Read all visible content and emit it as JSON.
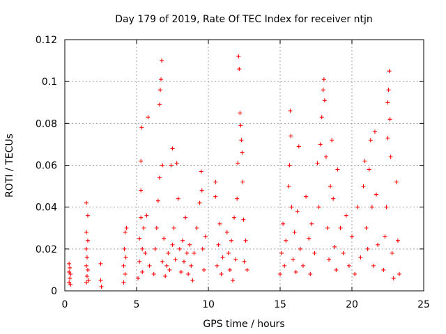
{
  "chart_data": {
    "type": "scatter",
    "title": "Day 179 of 2019, Rate Of TEC Index for receiver ntjn",
    "xlabel": "GPS time / hours",
    "ylabel": "ROTI / TECUs",
    "xlim": [
      0,
      25
    ],
    "ylim": [
      0,
      0.12
    ],
    "grid": true,
    "marker": "+",
    "color": "#ff0000",
    "x_ticks": [
      {
        "value": 0,
        "label": "0"
      },
      {
        "value": 5,
        "label": "5"
      },
      {
        "value": 10,
        "label": "10"
      },
      {
        "value": 15,
        "label": "15"
      },
      {
        "value": 20,
        "label": "20"
      },
      {
        "value": 25,
        "label": "25"
      }
    ],
    "y_ticks": [
      {
        "value": 0,
        "label": "0"
      },
      {
        "value": 0.02,
        "label": "0.02"
      },
      {
        "value": 0.04,
        "label": "0.04"
      },
      {
        "value": 0.06,
        "label": "0.06"
      },
      {
        "value": 0.08,
        "label": "0.08"
      },
      {
        "value": 0.1,
        "label": "0.1"
      },
      {
        "value": 0.12,
        "label": "0.12"
      }
    ],
    "series": [
      {
        "name": "ROTI",
        "points": [
          [
            0.3,
            0.004
          ],
          [
            0.3,
            0.009
          ],
          [
            0.3,
            0.013
          ],
          [
            0.35,
            0.006
          ],
          [
            0.35,
            0.011
          ],
          [
            0.4,
            0.003
          ],
          [
            0.4,
            0.008
          ],
          [
            1.5,
            0.004
          ],
          [
            1.5,
            0.012
          ],
          [
            1.5,
            0.02
          ],
          [
            1.5,
            0.028
          ],
          [
            1.5,
            0.042
          ],
          [
            1.55,
            0.007
          ],
          [
            1.55,
            0.016
          ],
          [
            1.6,
            0.01
          ],
          [
            1.6,
            0.024
          ],
          [
            1.6,
            0.036
          ],
          [
            1.65,
            0.005
          ],
          [
            2.5,
            0.005
          ],
          [
            2.5,
            0.013
          ],
          [
            2.55,
            0.002
          ],
          [
            4.1,
            0.004
          ],
          [
            4.1,
            0.012
          ],
          [
            4.15,
            0.02
          ],
          [
            4.2,
            0.008
          ],
          [
            4.2,
            0.028
          ],
          [
            4.25,
            0.016
          ],
          [
            4.3,
            0.03
          ],
          [
            5.1,
            0.006
          ],
          [
            5.2,
            0.014
          ],
          [
            5.2,
            0.025
          ],
          [
            5.3,
            0.035
          ],
          [
            5.3,
            0.048
          ],
          [
            5.3,
            0.062
          ],
          [
            5.35,
            0.078
          ],
          [
            5.4,
            0.02
          ],
          [
            5.4,
            0.009
          ],
          [
            5.5,
            0.03
          ],
          [
            5.6,
            0.018
          ],
          [
            5.7,
            0.036
          ],
          [
            5.8,
            0.083
          ],
          [
            5.9,
            0.012
          ],
          [
            6.2,
            0.008
          ],
          [
            6.3,
            0.02
          ],
          [
            6.4,
            0.03
          ],
          [
            6.5,
            0.043
          ],
          [
            6.6,
            0.054
          ],
          [
            6.6,
            0.089
          ],
          [
            6.65,
            0.096
          ],
          [
            6.7,
            0.101
          ],
          [
            6.75,
            0.11
          ],
          [
            6.8,
            0.06
          ],
          [
            6.8,
            0.014
          ],
          [
            6.9,
            0.025
          ],
          [
            7.0,
            0.007
          ],
          [
            7.1,
            0.012
          ],
          [
            7.2,
            0.018
          ],
          [
            7.3,
            0.01
          ],
          [
            7.4,
            0.06
          ],
          [
            7.5,
            0.068
          ],
          [
            7.5,
            0.022
          ],
          [
            7.6,
            0.03
          ],
          [
            7.7,
            0.015
          ],
          [
            7.8,
            0.061
          ],
          [
            7.9,
            0.044
          ],
          [
            8.0,
            0.02
          ],
          [
            8.1,
            0.009
          ],
          [
            8.2,
            0.024
          ],
          [
            8.3,
            0.014
          ],
          [
            8.4,
            0.035
          ],
          [
            8.5,
            0.018
          ],
          [
            8.6,
            0.008
          ],
          [
            8.7,
            0.022
          ],
          [
            8.8,
            0.012
          ],
          [
            8.9,
            0.005
          ],
          [
            9.0,
            0.018
          ],
          [
            9.2,
            0.03
          ],
          [
            9.4,
            0.042
          ],
          [
            9.5,
            0.057
          ],
          [
            9.55,
            0.048
          ],
          [
            9.6,
            0.02
          ],
          [
            9.7,
            0.01
          ],
          [
            9.8,
            0.026
          ],
          [
            10.5,
            0.052
          ],
          [
            10.5,
            0.045
          ],
          [
            10.6,
            0.012
          ],
          [
            10.7,
            0.022
          ],
          [
            10.8,
            0.032
          ],
          [
            10.9,
            0.008
          ],
          [
            11.0,
            0.016
          ],
          [
            11.3,
            0.028
          ],
          [
            11.4,
            0.018
          ],
          [
            11.5,
            0.01
          ],
          [
            11.6,
            0.024
          ],
          [
            11.7,
            0.005
          ],
          [
            11.8,
            0.035
          ],
          [
            11.9,
            0.015
          ],
          [
            12.0,
            0.044
          ],
          [
            12.05,
            0.061
          ],
          [
            12.1,
            0.112
          ],
          [
            12.15,
            0.106
          ],
          [
            12.2,
            0.085
          ],
          [
            12.25,
            0.079
          ],
          [
            12.3,
            0.072
          ],
          [
            12.35,
            0.066
          ],
          [
            12.4,
            0.052
          ],
          [
            12.45,
            0.034
          ],
          [
            12.5,
            0.014
          ],
          [
            12.6,
            0.024
          ],
          [
            12.7,
            0.01
          ],
          [
            15.0,
            0.008
          ],
          [
            15.1,
            0.018
          ],
          [
            15.2,
            0.032
          ],
          [
            15.3,
            0.012
          ],
          [
            15.4,
            0.024
          ],
          [
            15.6,
            0.05
          ],
          [
            15.65,
            0.06
          ],
          [
            15.7,
            0.086
          ],
          [
            15.75,
            0.074
          ],
          [
            15.8,
            0.04
          ],
          [
            15.9,
            0.015
          ],
          [
            16.0,
            0.028
          ],
          [
            16.1,
            0.009
          ],
          [
            16.2,
            0.038
          ],
          [
            16.3,
            0.069
          ],
          [
            16.4,
            0.02
          ],
          [
            16.6,
            0.012
          ],
          [
            16.8,
            0.045
          ],
          [
            17.0,
            0.025
          ],
          [
            17.1,
            0.008
          ],
          [
            17.2,
            0.032
          ],
          [
            17.4,
            0.018
          ],
          [
            17.6,
            0.061
          ],
          [
            17.7,
            0.04
          ],
          [
            17.8,
            0.07
          ],
          [
            17.9,
            0.083
          ],
          [
            18.0,
            0.096
          ],
          [
            18.05,
            0.101
          ],
          [
            18.1,
            0.091
          ],
          [
            18.2,
            0.064
          ],
          [
            18.3,
            0.03
          ],
          [
            18.4,
            0.015
          ],
          [
            18.5,
            0.05
          ],
          [
            18.6,
            0.072
          ],
          [
            18.7,
            0.044
          ],
          [
            18.8,
            0.021
          ],
          [
            18.9,
            0.01
          ],
          [
            19.0,
            0.058
          ],
          [
            19.2,
            0.03
          ],
          [
            19.4,
            0.018
          ],
          [
            19.6,
            0.036
          ],
          [
            19.8,
            0.012
          ],
          [
            20.0,
            0.026
          ],
          [
            20.2,
            0.008
          ],
          [
            20.4,
            0.04
          ],
          [
            20.6,
            0.016
          ],
          [
            20.8,
            0.05
          ],
          [
            20.9,
            0.062
          ],
          [
            21.0,
            0.03
          ],
          [
            21.1,
            0.02
          ],
          [
            21.2,
            0.058
          ],
          [
            21.3,
            0.072
          ],
          [
            21.4,
            0.04
          ],
          [
            21.5,
            0.012
          ],
          [
            21.6,
            0.076
          ],
          [
            21.7,
            0.046
          ],
          [
            21.8,
            0.022
          ],
          [
            22.2,
            0.01
          ],
          [
            22.3,
            0.026
          ],
          [
            22.4,
            0.04
          ],
          [
            22.5,
            0.073
          ],
          [
            22.5,
            0.09
          ],
          [
            22.55,
            0.096
          ],
          [
            22.6,
            0.105
          ],
          [
            22.65,
            0.082
          ],
          [
            22.7,
            0.064
          ],
          [
            22.8,
            0.018
          ],
          [
            22.9,
            0.006
          ],
          [
            23.1,
            0.052
          ],
          [
            23.2,
            0.024
          ],
          [
            23.3,
            0.008
          ]
        ]
      }
    ]
  }
}
